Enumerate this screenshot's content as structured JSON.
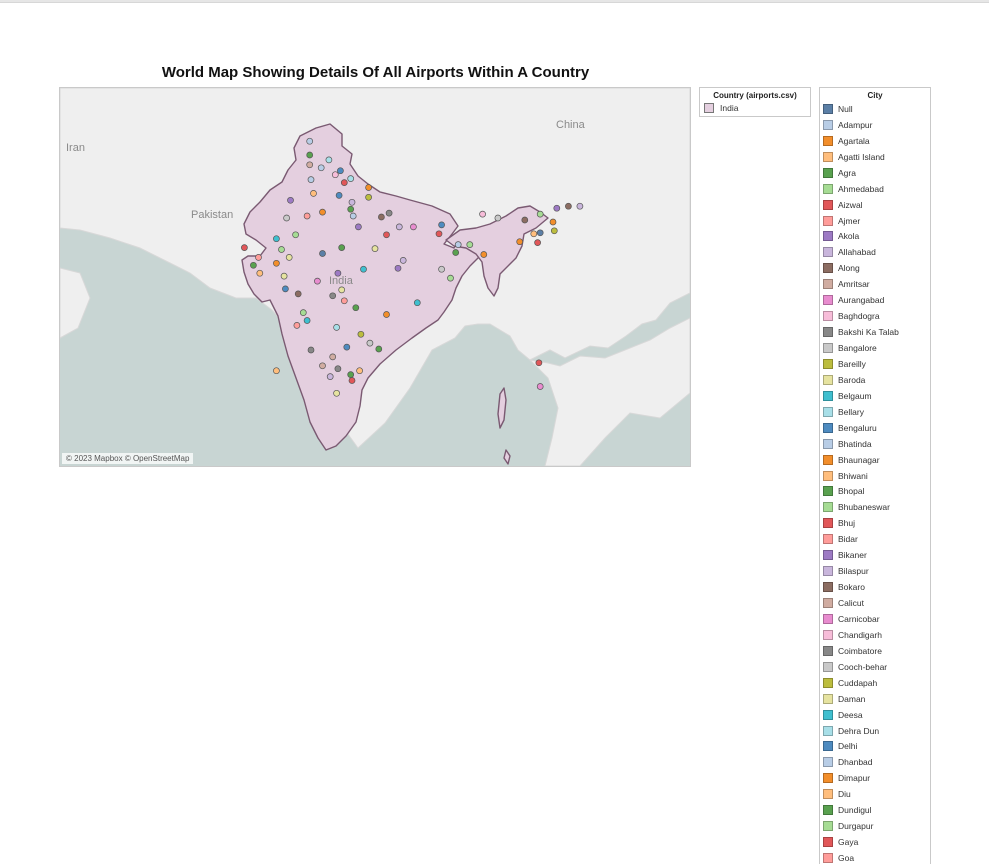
{
  "title": "World Map Showing Details Of All Airports Within A Country",
  "map": {
    "attribution": "© 2023 Mapbox © OpenStreetMap",
    "labels": {
      "iran": "Iran",
      "pakistan": "Pakistan",
      "china": "China",
      "india": "India"
    },
    "colors": {
      "water": "#c8d5d3",
      "land": "#efefef",
      "country_fill": "#e4cfdf",
      "country_stroke": "#7a5a72"
    }
  },
  "country_legend": {
    "title": "Country (airports.csv)",
    "items": [
      {
        "label": "India",
        "color": "#e4cfdf"
      }
    ]
  },
  "city_legend": {
    "title": "City",
    "items": [
      {
        "label": "Null",
        "color": "#5b7fa6"
      },
      {
        "label": "Adampur",
        "color": "#b8cde6"
      },
      {
        "label": "Agartala",
        "color": "#f28e2b"
      },
      {
        "label": "Agatti Island",
        "color": "#ffbe7d"
      },
      {
        "label": "Agra",
        "color": "#59a14f"
      },
      {
        "label": "Ahmedabad",
        "color": "#a6dc94"
      },
      {
        "label": "Aizwal",
        "color": "#e15759"
      },
      {
        "label": "Ajmer",
        "color": "#ff9d9a"
      },
      {
        "label": "Akola",
        "color": "#9d7ac4"
      },
      {
        "label": "Allahabad",
        "color": "#c9b6dc"
      },
      {
        "label": "Along",
        "color": "#8c6d62"
      },
      {
        "label": "Amritsar",
        "color": "#d0aca1"
      },
      {
        "label": "Aurangabad",
        "color": "#e88ccf"
      },
      {
        "label": "Baghdogra",
        "color": "#f7bdd9"
      },
      {
        "label": "Bakshi Ka Talab",
        "color": "#888888"
      },
      {
        "label": "Bangalore",
        "color": "#c9c9c9"
      },
      {
        "label": "Bareilly",
        "color": "#bcbd3e"
      },
      {
        "label": "Baroda",
        "color": "#e6e3a0"
      },
      {
        "label": "Belgaum",
        "color": "#3fbfcf"
      },
      {
        "label": "Bellary",
        "color": "#a8dfe8"
      },
      {
        "label": "Bengaluru",
        "color": "#4e8bc0"
      },
      {
        "label": "Bhatinda",
        "color": "#b8cde6"
      },
      {
        "label": "Bhaunagar",
        "color": "#f28e2b"
      },
      {
        "label": "Bhiwani",
        "color": "#ffbe7d"
      },
      {
        "label": "Bhopal",
        "color": "#59a14f"
      },
      {
        "label": "Bhubaneswar",
        "color": "#a6dc94"
      },
      {
        "label": "Bhuj",
        "color": "#e15759"
      },
      {
        "label": "Bidar",
        "color": "#ff9d9a"
      },
      {
        "label": "Bikaner",
        "color": "#9d7ac4"
      },
      {
        "label": "Bilaspur",
        "color": "#c9b6dc"
      },
      {
        "label": "Bokaro",
        "color": "#8c6d62"
      },
      {
        "label": "Calicut",
        "color": "#d0aca1"
      },
      {
        "label": "Carnicobar",
        "color": "#e88ccf"
      },
      {
        "label": "Chandigarh",
        "color": "#f7bdd9"
      },
      {
        "label": "Coimbatore",
        "color": "#888888"
      },
      {
        "label": "Cooch-behar",
        "color": "#c9c9c9"
      },
      {
        "label": "Cuddapah",
        "color": "#bcbd3e"
      },
      {
        "label": "Daman",
        "color": "#e6e3a0"
      },
      {
        "label": "Deesa",
        "color": "#3fbfcf"
      },
      {
        "label": "Dehra Dun",
        "color": "#a8dfe8"
      },
      {
        "label": "Delhi",
        "color": "#4e8bc0"
      },
      {
        "label": "Dhanbad",
        "color": "#b8cde6"
      },
      {
        "label": "Dimapur",
        "color": "#f28e2b"
      },
      {
        "label": "Diu",
        "color": "#ffbe7d"
      },
      {
        "label": "Dundigul",
        "color": "#59a14f"
      },
      {
        "label": "Durgapur",
        "color": "#a6dc94"
      },
      {
        "label": "Gaya",
        "color": "#e15759"
      },
      {
        "label": "Goa",
        "color": "#ff9d9a"
      }
    ]
  },
  "airports": [
    {
      "lat": 32.7,
      "lon": 74.8,
      "color": "#59a14f"
    },
    {
      "lat": 31.7,
      "lon": 74.8,
      "color": "#d0aca1"
    },
    {
      "lat": 31.4,
      "lon": 75.7,
      "color": "#b8cde6"
    },
    {
      "lat": 30.7,
      "lon": 76.8,
      "color": "#f7bdd9"
    },
    {
      "lat": 30.3,
      "lon": 78.0,
      "color": "#a8dfe8"
    },
    {
      "lat": 30.2,
      "lon": 74.9,
      "color": "#b8cde6"
    },
    {
      "lat": 29.9,
      "lon": 77.5,
      "color": "#e15759"
    },
    {
      "lat": 28.8,
      "lon": 75.1,
      "color": "#ffbe7d"
    },
    {
      "lat": 28.6,
      "lon": 77.1,
      "color": "#4e8bc0"
    },
    {
      "lat": 28.4,
      "lon": 79.4,
      "color": "#bcbd3e"
    },
    {
      "lat": 28.1,
      "lon": 73.3,
      "color": "#9d7ac4"
    },
    {
      "lat": 27.2,
      "lon": 78.0,
      "color": "#59a14f"
    },
    {
      "lat": 26.9,
      "lon": 75.8,
      "color": "#f28e2b"
    },
    {
      "lat": 26.8,
      "lon": 81.0,
      "color": "#888888"
    },
    {
      "lat": 26.3,
      "lon": 73.0,
      "color": "#c9c9c9"
    },
    {
      "lat": 26.4,
      "lon": 80.4,
      "color": "#8c6d62"
    },
    {
      "lat": 26.5,
      "lon": 74.6,
      "color": "#ff9d9a"
    },
    {
      "lat": 25.4,
      "lon": 81.8,
      "color": "#c9b6dc"
    },
    {
      "lat": 25.4,
      "lon": 82.9,
      "color": "#e88ccf"
    },
    {
      "lat": 25.6,
      "lon": 85.1,
      "color": "#4e8bc0"
    },
    {
      "lat": 24.7,
      "lon": 84.9,
      "color": "#e15759"
    },
    {
      "lat": 24.6,
      "lon": 73.7,
      "color": "#a6dc94"
    },
    {
      "lat": 24.2,
      "lon": 72.2,
      "color": "#3fbfcf"
    },
    {
      "lat": 23.3,
      "lon": 69.7,
      "color": "#e15759"
    },
    {
      "lat": 23.1,
      "lon": 72.6,
      "color": "#a6dc94"
    },
    {
      "lat": 23.3,
      "lon": 77.3,
      "color": "#59a14f"
    },
    {
      "lat": 22.7,
      "lon": 75.8,
      "color": "#5b7fa6"
    },
    {
      "lat": 23.2,
      "lon": 79.9,
      "color": "#e6e3a0"
    },
    {
      "lat": 22.3,
      "lon": 73.2,
      "color": "#e6e3a0"
    },
    {
      "lat": 22.6,
      "lon": 88.4,
      "color": "#f28e2b"
    },
    {
      "lat": 23.6,
      "lon": 86.4,
      "color": "#b8cde6"
    },
    {
      "lat": 23.6,
      "lon": 87.3,
      "color": "#a6dc94"
    },
    {
      "lat": 21.7,
      "lon": 72.2,
      "color": "#f28e2b"
    },
    {
      "lat": 22.0,
      "lon": 82.1,
      "color": "#c9b6dc"
    },
    {
      "lat": 21.1,
      "lon": 79.0,
      "color": "#3fbfcf"
    },
    {
      "lat": 21.2,
      "lon": 81.7,
      "color": "#9d7ac4"
    },
    {
      "lat": 20.7,
      "lon": 70.9,
      "color": "#ffbe7d"
    },
    {
      "lat": 20.4,
      "lon": 72.8,
      "color": "#e6e3a0"
    },
    {
      "lat": 20.7,
      "lon": 77.0,
      "color": "#9d7ac4"
    },
    {
      "lat": 20.2,
      "lon": 85.8,
      "color": "#a6dc94"
    },
    {
      "lat": 19.9,
      "lon": 75.4,
      "color": "#e88ccf"
    },
    {
      "lat": 19.1,
      "lon": 72.9,
      "color": "#4e8bc0"
    },
    {
      "lat": 18.6,
      "lon": 73.9,
      "color": "#8c6d62"
    },
    {
      "lat": 17.7,
      "lon": 83.2,
      "color": "#3fbfcf"
    },
    {
      "lat": 17.2,
      "lon": 78.4,
      "color": "#59a14f"
    },
    {
      "lat": 17.9,
      "lon": 77.5,
      "color": "#ff9d9a"
    },
    {
      "lat": 16.5,
      "lon": 80.8,
      "color": "#f28e2b"
    },
    {
      "lat": 15.9,
      "lon": 74.6,
      "color": "#3fbfcf"
    },
    {
      "lat": 15.4,
      "lon": 73.8,
      "color": "#ff9d9a"
    },
    {
      "lat": 15.2,
      "lon": 76.9,
      "color": "#a8dfe8"
    },
    {
      "lat": 14.5,
      "lon": 78.8,
      "color": "#bcbd3e"
    },
    {
      "lat": 13.6,
      "lon": 79.5,
      "color": "#c9c9c9"
    },
    {
      "lat": 13.2,
      "lon": 77.7,
      "color": "#4e8bc0"
    },
    {
      "lat": 13.0,
      "lon": 80.2,
      "color": "#59a14f"
    },
    {
      "lat": 12.9,
      "lon": 74.9,
      "color": "#888888"
    },
    {
      "lat": 12.2,
      "lon": 76.6,
      "color": "#d0aca1"
    },
    {
      "lat": 11.3,
      "lon": 75.8,
      "color": "#d0aca1"
    },
    {
      "lat": 11.0,
      "lon": 77.0,
      "color": "#888888"
    },
    {
      "lat": 10.8,
      "lon": 78.7,
      "color": "#ffbe7d"
    },
    {
      "lat": 10.4,
      "lon": 78.0,
      "color": "#59a14f"
    },
    {
      "lat": 10.2,
      "lon": 76.4,
      "color": "#c9b6dc"
    },
    {
      "lat": 9.8,
      "lon": 78.1,
      "color": "#e15759"
    },
    {
      "lat": 8.5,
      "lon": 76.9,
      "color": "#e6e3a0"
    },
    {
      "lat": 10.8,
      "lon": 72.2,
      "color": "#ffbe7d"
    },
    {
      "lat": 11.6,
      "lon": 92.7,
      "color": "#e15759"
    },
    {
      "lat": 9.2,
      "lon": 92.8,
      "color": "#e88ccf"
    },
    {
      "lat": 26.7,
      "lon": 88.3,
      "color": "#f7bdd9"
    },
    {
      "lat": 26.3,
      "lon": 89.5,
      "color": "#c9c9c9"
    },
    {
      "lat": 26.1,
      "lon": 91.6,
      "color": "#8c6d62"
    },
    {
      "lat": 25.9,
      "lon": 93.8,
      "color": "#f28e2b"
    },
    {
      "lat": 24.8,
      "lon": 92.8,
      "color": "#5b7fa6"
    },
    {
      "lat": 23.9,
      "lon": 91.2,
      "color": "#f28e2b"
    },
    {
      "lat": 23.8,
      "lon": 92.6,
      "color": "#e15759"
    },
    {
      "lat": 27.5,
      "lon": 95.0,
      "color": "#8c6d62"
    },
    {
      "lat": 27.3,
      "lon": 94.1,
      "color": "#9d7ac4"
    },
    {
      "lat": 26.7,
      "lon": 92.8,
      "color": "#a6dc94"
    },
    {
      "lat": 25.0,
      "lon": 93.9,
      "color": "#bcbd3e"
    },
    {
      "lat": 27.5,
      "lon": 95.9,
      "color": "#c9b6dc"
    },
    {
      "lat": 24.7,
      "lon": 92.3,
      "color": "#ffbe7d"
    },
    {
      "lat": 29.4,
      "lon": 79.4,
      "color": "#f28e2b"
    },
    {
      "lat": 27.9,
      "lon": 78.1,
      "color": "#c9b6dc"
    },
    {
      "lat": 24.6,
      "lon": 80.8,
      "color": "#e15759"
    },
    {
      "lat": 21.5,
      "lon": 70.4,
      "color": "#59a14f"
    },
    {
      "lat": 22.3,
      "lon": 70.8,
      "color": "#ff9d9a"
    },
    {
      "lat": 26.5,
      "lon": 78.2,
      "color": "#b8cde6"
    },
    {
      "lat": 25.4,
      "lon": 78.6,
      "color": "#9d7ac4"
    },
    {
      "lat": 19.0,
      "lon": 77.3,
      "color": "#e6e3a0"
    },
    {
      "lat": 18.4,
      "lon": 76.6,
      "color": "#888888"
    },
    {
      "lat": 16.7,
      "lon": 74.3,
      "color": "#a6dc94"
    },
    {
      "lat": 21.1,
      "lon": 85.1,
      "color": "#c9c9c9"
    },
    {
      "lat": 22.8,
      "lon": 86.2,
      "color": "#59a14f"
    },
    {
      "lat": 31.1,
      "lon": 77.2,
      "color": "#4e8bc0"
    },
    {
      "lat": 32.2,
      "lon": 76.3,
      "color": "#a8dfe8"
    },
    {
      "lat": 34.1,
      "lon": 74.8,
      "color": "#b8cde6"
    }
  ]
}
